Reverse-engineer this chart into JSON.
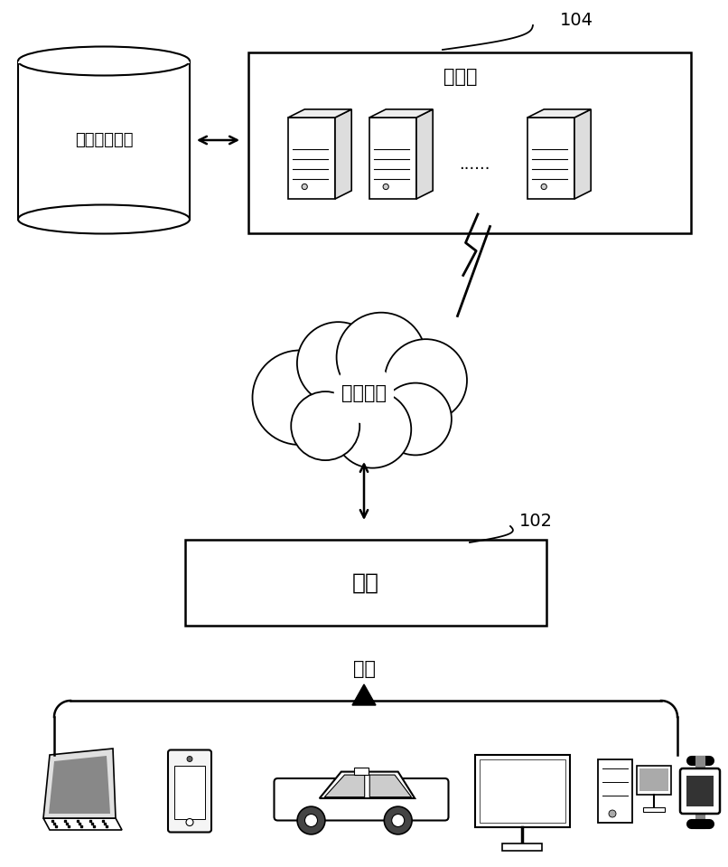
{
  "background_color": "#ffffff",
  "label_104": "104",
  "label_102": "102",
  "server_label": "服务器",
  "network_label": "通信网络",
  "terminal_label": "终端",
  "db_label": "数据存储系统",
  "example_label": "例如",
  "dots": "......",
  "font_size_large": 15,
  "font_size_medium": 13,
  "font_size_small": 11
}
